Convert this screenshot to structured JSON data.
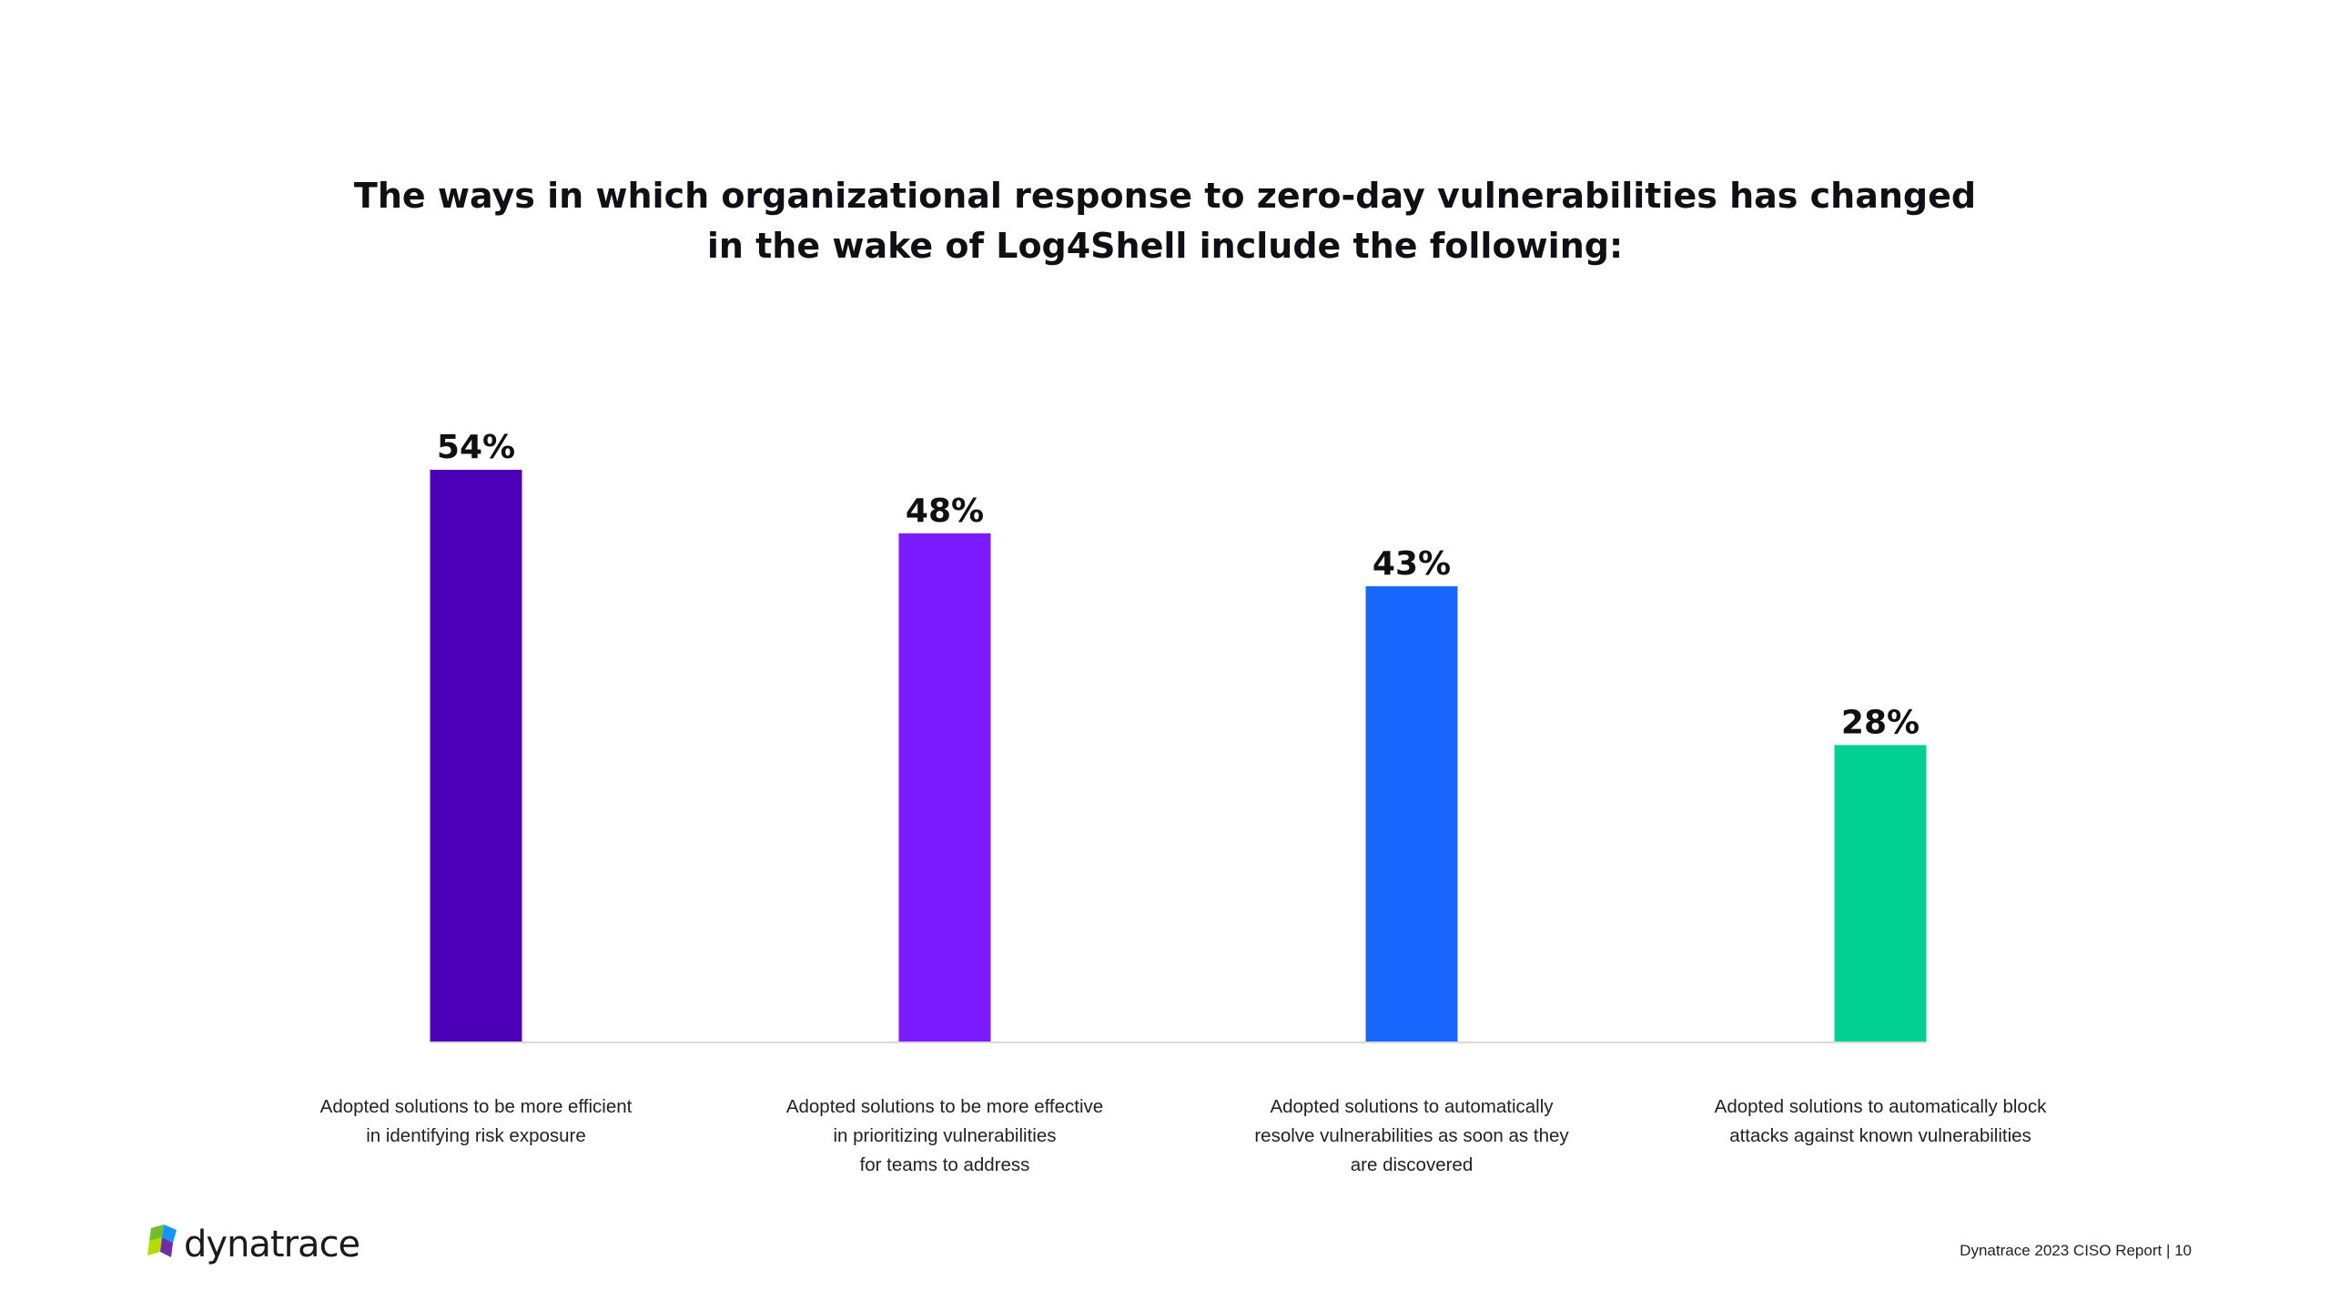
{
  "slide": {
    "title_line1": "The ways in which organizational response to zero-day vulnerabilities has changed",
    "title_line2": "in the wake of Log4Shell include the following:"
  },
  "chart_data": {
    "type": "bar",
    "title": "The ways in which organizational response to zero-day vulnerabilities has changed in the wake of Log4Shell include the following:",
    "xlabel": "",
    "ylabel": "",
    "ylim": [
      0,
      54
    ],
    "grid": false,
    "categories": [
      "Adopted solutions to be more efficient\nin identifying risk exposure",
      "Adopted solutions to be more effective\nin prioritizing vulnerabilities\nfor teams to address",
      "Adopted solutions to automatically\nresolve vulnerabilities as soon as they\nare discovered",
      "Adopted solutions to automatically block\nattacks against known vulnerabilities"
    ],
    "values": [
      54,
      48,
      43,
      28
    ],
    "value_labels": [
      "54%",
      "48%",
      "43%",
      "28%"
    ],
    "colors": [
      "#4b00b8",
      "#7c1bff",
      "#1a67ff",
      "#00d193"
    ],
    "baseline_color": "#d9d9d9"
  },
  "brand": {
    "logo_text": "dynatrace",
    "logo_colors": [
      "#1496ff",
      "#6f2da8",
      "#73be28",
      "#b4dc00"
    ]
  },
  "footer": {
    "text": "Dynatrace 2023 CISO Report | 10"
  }
}
